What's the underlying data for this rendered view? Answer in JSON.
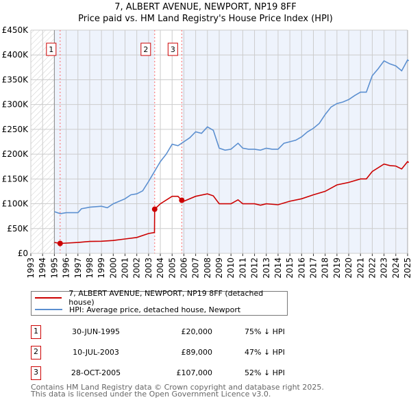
{
  "title": {
    "line1": "7, ALBERT AVENUE, NEWPORT, NP19 8FF",
    "line2": "Price paid vs. HM Land Registry's House Price Index (HPI)"
  },
  "chart_data": {
    "type": "line",
    "title": "7, ALBERT AVENUE, NEWPORT, NP19 8FF — Price paid vs. HM Land Registry's House Price Index (HPI)",
    "xlim": [
      1993,
      2025
    ],
    "ylim": [
      0,
      450000
    ],
    "x_ticks": [
      "1993",
      "1994",
      "1995",
      "1996",
      "1997",
      "1998",
      "1999",
      "2000",
      "2001",
      "2002",
      "2003",
      "2004",
      "2005",
      "2006",
      "2007",
      "2008",
      "2009",
      "2010",
      "2011",
      "2012",
      "2013",
      "2014",
      "2015",
      "2016",
      "2017",
      "2018",
      "2019",
      "2020",
      "2021",
      "2022",
      "2023",
      "2024",
      "2025"
    ],
    "y_ticks": [
      {
        "v": 0,
        "label": "£0"
      },
      {
        "v": 50000,
        "label": "£50K"
      },
      {
        "v": 100000,
        "label": "£100K"
      },
      {
        "v": 150000,
        "label": "£150K"
      },
      {
        "v": 200000,
        "label": "£200K"
      },
      {
        "v": 250000,
        "label": "£250K"
      },
      {
        "v": 300000,
        "label": "£300K"
      },
      {
        "v": 350000,
        "label": "£350K"
      },
      {
        "v": 400000,
        "label": "£400K"
      },
      {
        "v": 450000,
        "label": "£450K"
      }
    ],
    "grid": true,
    "colors": {
      "property": "#cc0000",
      "hpi": "#5b8fd0",
      "shade": "#eef3fc"
    },
    "series": [
      {
        "name": "7, ALBERT AVENUE, NEWPORT, NP19 8FF (detached house)",
        "color": "#cc0000",
        "x": [
          1995,
          1995.5,
          1997,
          1998,
          1999,
          2000,
          2001,
          2002,
          2003,
          2003.5,
          2003.52,
          2004,
          2005,
          2005.5,
          2005.82,
          2006,
          2007,
          2008,
          2008.5,
          2009,
          2010,
          2010.6,
          2011,
          2012,
          2012.5,
          2013,
          2014,
          2015,
          2016,
          2017,
          2018,
          2019,
          2020,
          2021,
          2021.5,
          2022,
          2023,
          2023.5,
          2024,
          2024.5,
          2025,
          2025.1
        ],
        "y": [
          22000,
          20000,
          22000,
          24000,
          24500,
          26000,
          29000,
          32000,
          40000,
          42000,
          89000,
          100000,
          115000,
          115000,
          107000,
          105000,
          115000,
          120000,
          116000,
          100000,
          100000,
          108000,
          100000,
          100000,
          97000,
          100000,
          98000,
          105000,
          110000,
          118000,
          125000,
          138000,
          143000,
          150000,
          150000,
          165000,
          180000,
          177000,
          176000,
          170000,
          185000,
          183000
        ]
      },
      {
        "name": "HPI: Average price, detached house, Newport",
        "color": "#5b8fd0",
        "x": [
          1995,
          1995.5,
          1996,
          1997,
          1997.3,
          1998,
          1999,
          1999.5,
          2000,
          2001,
          2001.5,
          2002,
          2002.5,
          2003,
          2003.5,
          2004,
          2004.5,
          2005,
          2005.5,
          2006,
          2006.5,
          2007,
          2007.5,
          2008,
          2008.5,
          2009,
          2009.5,
          2010,
          2010.6,
          2011,
          2011.5,
          2012,
          2012.5,
          2013,
          2013.5,
          2014,
          2014.5,
          2015,
          2015.5,
          2016,
          2016.5,
          2017,
          2017.5,
          2018,
          2018.5,
          2019,
          2019.5,
          2020,
          2020.5,
          2021,
          2021.5,
          2022,
          2022.5,
          2023,
          2023.5,
          2024,
          2024.5,
          2025,
          2025.1
        ],
        "y": [
          84000,
          80000,
          82000,
          82000,
          90000,
          93000,
          95000,
          92000,
          100000,
          110000,
          118000,
          120000,
          126000,
          145000,
          165000,
          185000,
          200000,
          220000,
          217000,
          225000,
          233000,
          245000,
          242000,
          255000,
          248000,
          212000,
          208000,
          210000,
          222000,
          212000,
          210000,
          210000,
          208000,
          212000,
          210000,
          210000,
          222000,
          225000,
          228000,
          235000,
          245000,
          252000,
          262000,
          280000,
          295000,
          302000,
          305000,
          310000,
          318000,
          325000,
          325000,
          358000,
          372000,
          388000,
          382000,
          378000,
          368000,
          390000,
          388000
        ]
      }
    ],
    "sales": [
      {
        "id": "1",
        "x": 1995.49,
        "date": "30-JUN-1995",
        "price": 20000,
        "price_label": "£20,000",
        "hpi_label": "75% ↓ HPI"
      },
      {
        "id": "2",
        "x": 2003.52,
        "date": "10-JUL-2003",
        "price": 89000,
        "price_label": "£89,000",
        "hpi_label": "47% ↓ HPI"
      },
      {
        "id": "3",
        "x": 2005.82,
        "date": "28-OCT-2005",
        "price": 107000,
        "price_label": "£107,000",
        "hpi_label": "52% ↓ HPI"
      }
    ],
    "legend_position": "below"
  },
  "footer": {
    "line1": "Contains HM Land Registry data © Crown copyright and database right 2025.",
    "line2": "This data is licensed under the Open Government Licence v3.0."
  }
}
